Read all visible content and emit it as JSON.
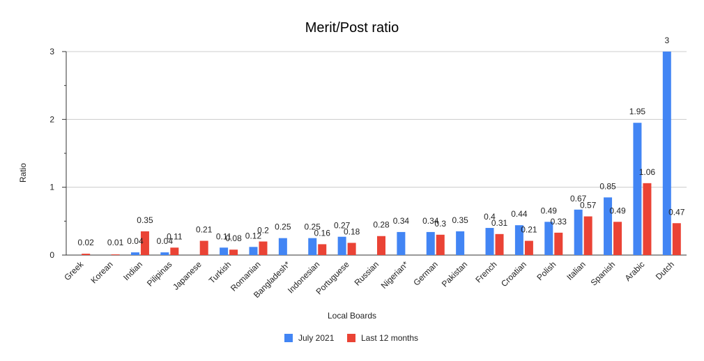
{
  "chart_data": {
    "type": "bar",
    "title": "Merit/Post ratio",
    "xlabel": "Local Boards",
    "ylabel": "Ratio",
    "ylim": [
      0,
      3
    ],
    "yticks": [
      0,
      1,
      2,
      3
    ],
    "grid": true,
    "legend_position": "bottom",
    "categories": [
      "Greek",
      "Korean",
      "Indian",
      "Pilipinas",
      "Japanese",
      "Turkish",
      "Romanian",
      "Bangladesh*",
      "Indonesian",
      "Portuguese",
      "Russian",
      "Nigerian*",
      "German",
      "Pakistan",
      "French",
      "Croatian",
      "Polish",
      "Italian",
      "Spanish",
      "Arabic",
      "Dutch"
    ],
    "series": [
      {
        "name": "July 2021",
        "color": "#4285f4",
        "values": [
          null,
          null,
          0.04,
          0.04,
          null,
          0.11,
          0.12,
          0.25,
          0.25,
          0.27,
          null,
          0.34,
          0.34,
          0.35,
          0.4,
          0.44,
          0.49,
          0.67,
          0.85,
          1.95,
          3
        ],
        "labels": [
          "",
          "",
          "0.04",
          "0.04",
          "",
          "0.11",
          "0.12",
          "0.25",
          "0.25",
          "0.27",
          "",
          "0.34",
          "0.34",
          "0.35",
          "0.4",
          "0.44",
          "0.49",
          "0.67",
          "0.85",
          "1.95",
          "3"
        ]
      },
      {
        "name": "Last 12 months",
        "color": "#ea4335",
        "values": [
          0.02,
          0.01,
          0.35,
          0.11,
          0.21,
          0.08,
          0.2,
          null,
          0.16,
          0.18,
          0.28,
          null,
          0.3,
          null,
          0.31,
          0.21,
          0.33,
          0.57,
          0.49,
          1.06,
          0.47
        ],
        "labels": [
          "0.02",
          "0.01",
          "0.35",
          "0.11",
          "0.21",
          "0.08",
          "0.2",
          "",
          "0.16",
          "0.18",
          "0.28",
          "",
          "0.3",
          "",
          "0.31",
          "0.21",
          "0.33",
          "0.57",
          "0.49",
          "1.06",
          "0.47"
        ]
      }
    ]
  }
}
